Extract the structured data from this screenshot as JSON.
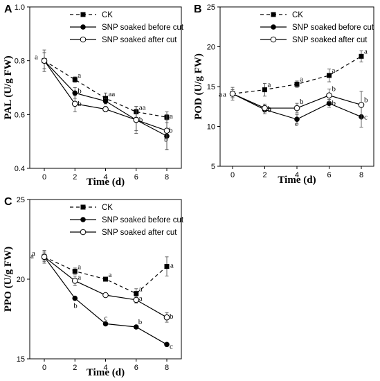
{
  "chart_data": [
    {
      "type": "line",
      "panel": "A",
      "xlabel": "Time (d)",
      "ylabel": "PAL (U/g FW)",
      "x": [
        0,
        2,
        4,
        6,
        8
      ],
      "xticks": [
        "0",
        "2",
        "4",
        "6",
        "8"
      ],
      "ylim": [
        0.4,
        1.0
      ],
      "yticks": [
        "0.4",
        "0.6",
        "0.8",
        "1.0"
      ],
      "legend_position": "top-center",
      "series": [
        {
          "name": "CK",
          "style": "dashed-square",
          "values": [
            0.8,
            0.73,
            0.66,
            0.61,
            0.59
          ],
          "errors": [
            0.03,
            0.01,
            0.02,
            0.02,
            0.01
          ],
          "labels": [
            "a",
            "a",
            "aa",
            "aa",
            "a"
          ]
        },
        {
          "name": "SNP soaked  before cut",
          "style": "solid-filled-circle",
          "values": [
            0.8,
            0.68,
            0.65,
            0.58,
            0.52
          ],
          "errors": [
            0.03,
            0.02,
            0.01,
            0.05,
            0.05
          ],
          "labels": [
            "",
            "b",
            "",
            "b",
            "b"
          ]
        },
        {
          "name": "SNP soaked  after cut",
          "style": "solid-open-circle",
          "values": [
            0.8,
            0.64,
            0.62,
            0.58,
            0.54
          ],
          "errors": [
            0.04,
            0.03,
            0.01,
            0.04,
            0.07
          ],
          "labels": [
            "",
            "b",
            "",
            "",
            "b"
          ]
        }
      ]
    },
    {
      "type": "line",
      "panel": "B",
      "xlabel": "Time (d)",
      "ylabel": "POD (U/g FW)",
      "x": [
        0,
        2,
        4,
        6,
        8
      ],
      "xticks": [
        "0",
        "2",
        "4",
        "6",
        "8"
      ],
      "ylim": [
        5,
        25
      ],
      "yticks": [
        "5",
        "10",
        "15",
        "20",
        "25"
      ],
      "legend_position": "top-center",
      "series": [
        {
          "name": "CK",
          "style": "dashed-square",
          "values": [
            14.1,
            14.6,
            15.3,
            16.4,
            18.8
          ],
          "errors": [
            0.8,
            0.8,
            0.4,
            0.8,
            0.7
          ],
          "labels": [
            "a",
            "a",
            "a",
            "a",
            "a"
          ]
        },
        {
          "name": "SNP soaked  before cut",
          "style": "solid-filled-circle",
          "values": [
            14.1,
            12.1,
            10.9,
            12.9,
            11.2
          ],
          "errors": [
            0.5,
            0.5,
            0.6,
            0.5,
            1.3
          ],
          "labels": [
            "",
            "b",
            "c",
            "b",
            "c"
          ]
        },
        {
          "name": "SNP soaked  after cut",
          "style": "solid-open-circle",
          "values": [
            14.1,
            12.3,
            12.3,
            13.9,
            12.7
          ],
          "errors": [
            0.5,
            0.5,
            0.6,
            0.8,
            1.7
          ],
          "labels": [
            "a",
            "b",
            "b",
            "b",
            "b"
          ]
        }
      ]
    },
    {
      "type": "line",
      "panel": "C",
      "xlabel": "Time (d)",
      "ylabel": "PPO (U/g FW)",
      "x": [
        0,
        2,
        4,
        6,
        8
      ],
      "xticks": [
        "0",
        "2",
        "4",
        "6",
        "8"
      ],
      "ylim": [
        15,
        25
      ],
      "yticks": [
        "15",
        "20",
        "25"
      ],
      "legend_position": "top-center",
      "series": [
        {
          "name": "CK",
          "style": "dashed-square",
          "values": [
            21.4,
            20.5,
            20.0,
            19.1,
            20.8
          ],
          "errors": [
            0.4,
            0.2,
            0.1,
            0.3,
            0.6
          ],
          "labels": [
            "a",
            "a",
            "a",
            "a",
            "a"
          ]
        },
        {
          "name": "SNP soaked  before cut",
          "style": "solid-filled-circle",
          "values": [
            21.4,
            18.8,
            17.2,
            17.0,
            15.9
          ],
          "errors": [
            0.2,
            0.1,
            0.1,
            0.1,
            0.1
          ],
          "labels": [
            "",
            "b",
            "c",
            "b",
            "c"
          ]
        },
        {
          "name": "SNP soaked  after cut",
          "style": "solid-open-circle",
          "values": [
            21.4,
            19.9,
            19.0,
            18.7,
            17.6
          ],
          "errors": [
            0.3,
            0.3,
            0.1,
            0.2,
            0.3
          ],
          "labels": [
            "a",
            "a",
            "",
            "a",
            "b"
          ]
        }
      ]
    }
  ]
}
